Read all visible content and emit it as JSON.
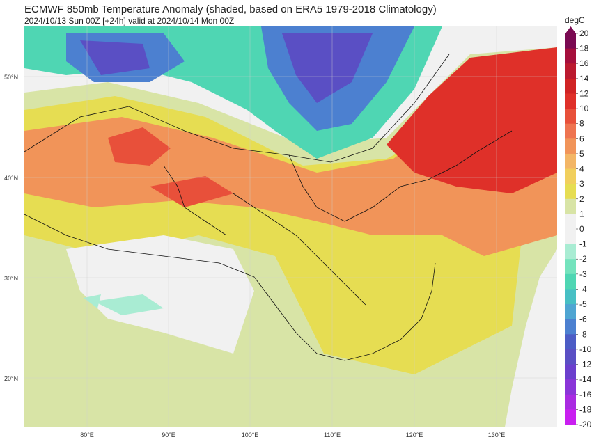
{
  "header": {
    "title": "ECMWF 850mb Temperature Anomaly (shaded, based on ERA5 1979-2018 Climatology)",
    "subtitle": "2024/10/13 Sun 00Z [+24h] valid at 2024/10/14 Mon 00Z"
  },
  "map": {
    "lat_labels": [
      "50°N",
      "40°N",
      "30°N",
      "20°N"
    ],
    "lon_labels": [
      "80°E",
      "90°E",
      "100°E",
      "110°E",
      "120°E",
      "130°E"
    ]
  },
  "colorbar": {
    "unit": "degC",
    "levels": [
      "20",
      "18",
      "16",
      "14",
      "12",
      "10",
      "8",
      "6",
      "5",
      "4",
      "3",
      "2",
      "1",
      "0",
      "-1",
      "-2",
      "-3",
      "-4",
      "-5",
      "-6",
      "-8",
      "-10",
      "-12",
      "-14",
      "-16",
      "-18",
      "-20"
    ],
    "colors": [
      "#7a0a52",
      "#a50f3c",
      "#bb1a2f",
      "#d02324",
      "#df3029",
      "#e8503a",
      "#ee7450",
      "#f19459",
      "#f3b666",
      "#f1cf5d",
      "#e6dd52",
      "#d8e4a6",
      "#f1f1f1",
      "#f1f1f1",
      "#a9ecd3",
      "#74e3bd",
      "#4fd6b3",
      "#47bfc4",
      "#4fa5d2",
      "#4c80d0",
      "#4c5cc5",
      "#5a4fc4",
      "#6b3fcd",
      "#8a35d8",
      "#a92be1",
      "#c91ff0",
      "#e600ff"
    ]
  },
  "palette": {
    "ocean": "#f1f1f1",
    "warm_strong": "#df3029",
    "warm_mid": "#f19459",
    "warm_light": "#e6dd52",
    "cool_light": "#d8e4a6",
    "cold_teal": "#4fd6b3",
    "cold_blue": "#4c5cc5",
    "border": "#111111"
  }
}
